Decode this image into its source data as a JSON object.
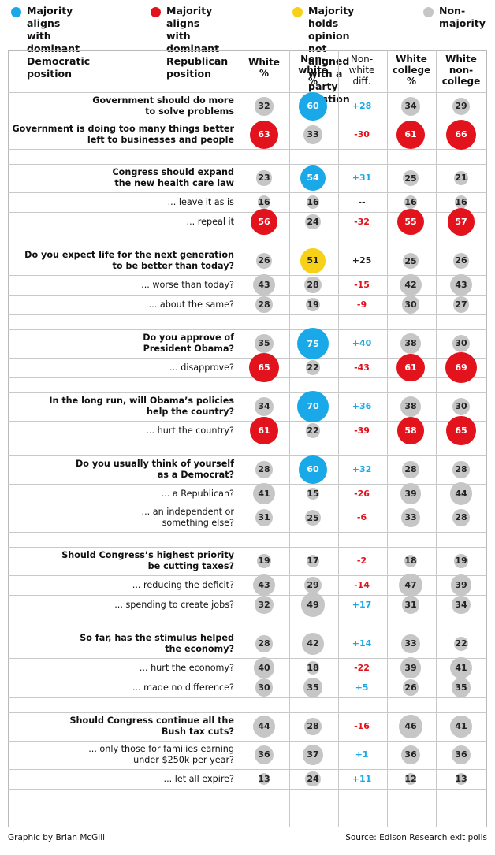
{
  "legend": [
    {
      "text": "Majority aligns\nwith dominant\nDemocratic position",
      "color": "#19a9e8"
    },
    {
      "text": "Majority aligns\nwith dominant\nRepublican position",
      "color": "#e2131c"
    },
    {
      "text": "Majority holds\nopinion not aligned\nwith a party postion",
      "color": "#f7d117"
    },
    {
      "text": "Non-\nmajority",
      "color": "#c6c6c6"
    }
  ],
  "columns": [
    {
      "label": "White\n%",
      "bold": true
    },
    {
      "label": "Non-\nwhite\n%",
      "bold": true
    },
    {
      "label": "Non-\nwhite\ndiff.",
      "bold": false
    },
    {
      "label": "White\ncollege\n%",
      "bold": true
    },
    {
      "label": "White\nnon-\ncollege",
      "bold": true
    }
  ],
  "colors": {
    "dem": "#19a9e8",
    "rep": "#e2131c",
    "other": "#f7d117",
    "none": "#c6c6c6",
    "diff_pos": "#19a9e8",
    "diff_neg": "#e2131c",
    "diff_neutral": "#222222"
  },
  "groups": [
    {
      "rows": [
        {
          "q": "Government should do more\nto solve problems",
          "bold": true,
          "white": 32,
          "nonwhite": 60,
          "diff": "+28",
          "college": 34,
          "noncollege": 29,
          "classes": [
            "none",
            "dem",
            "none",
            "none"
          ]
        },
        {
          "q": "Government is doing too many things better\nleft to businesses and people",
          "bold": true,
          "white": 63,
          "nonwhite": 33,
          "diff": "-30",
          "college": 61,
          "noncollege": 66,
          "classes": [
            "rep",
            "none",
            "rep",
            "rep"
          ]
        }
      ]
    },
    {
      "rows": [
        {
          "q": "Congress should expand\nthe new health care law",
          "bold": true,
          "white": 23,
          "nonwhite": 54,
          "diff": "+31",
          "college": 25,
          "noncollege": 21,
          "classes": [
            "none",
            "dem",
            "none",
            "none"
          ]
        },
        {
          "q": "... leave it as is",
          "bold": false,
          "white": 16,
          "nonwhite": 16,
          "diff": "--",
          "college": 16,
          "noncollege": 16,
          "classes": [
            "none",
            "none",
            "none",
            "none"
          ]
        },
        {
          "q": "... repeal it",
          "bold": false,
          "white": 56,
          "nonwhite": 24,
          "diff": "-32",
          "college": 55,
          "noncollege": 57,
          "classes": [
            "rep",
            "none",
            "rep",
            "rep"
          ]
        }
      ]
    },
    {
      "rows": [
        {
          "q": "Do you expect life for the next generation\nto be better than today?",
          "bold": true,
          "white": 26,
          "nonwhite": 51,
          "diff": "+25",
          "college": 25,
          "noncollege": 26,
          "classes": [
            "none",
            "other",
            "none",
            "none"
          ]
        },
        {
          "q": "... worse than today?",
          "bold": false,
          "white": 43,
          "nonwhite": 28,
          "diff": "-15",
          "college": 42,
          "noncollege": 43,
          "classes": [
            "none",
            "none",
            "none",
            "none"
          ]
        },
        {
          "q": "... about the same?",
          "bold": false,
          "white": 28,
          "nonwhite": 19,
          "diff": "-9",
          "college": 30,
          "noncollege": 27,
          "classes": [
            "none",
            "none",
            "none",
            "none"
          ]
        }
      ]
    },
    {
      "rows": [
        {
          "q": "Do you approve of\nPresident Obama?",
          "bold": true,
          "white": 35,
          "nonwhite": 75,
          "diff": "+40",
          "college": 38,
          "noncollege": 30,
          "classes": [
            "none",
            "dem",
            "none",
            "none"
          ]
        },
        {
          "q": "... disapprove?",
          "bold": false,
          "white": 65,
          "nonwhite": 22,
          "diff": "-43",
          "college": 61,
          "noncollege": 69,
          "classes": [
            "rep",
            "none",
            "rep",
            "rep"
          ]
        }
      ]
    },
    {
      "rows": [
        {
          "q": "In the long run, will Obama’s policies\nhelp the country?",
          "bold": true,
          "white": 34,
          "nonwhite": 70,
          "diff": "+36",
          "college": 38,
          "noncollege": 30,
          "classes": [
            "none",
            "dem",
            "none",
            "none"
          ]
        },
        {
          "q": "... hurt the country?",
          "bold": false,
          "white": 61,
          "nonwhite": 22,
          "diff": "-39",
          "college": 58,
          "noncollege": 65,
          "classes": [
            "rep",
            "none",
            "rep",
            "rep"
          ]
        }
      ]
    },
    {
      "rows": [
        {
          "q": "Do you usually think of yourself\nas a Democrat?",
          "bold": true,
          "white": 28,
          "nonwhite": 60,
          "diff": "+32",
          "college": 28,
          "noncollege": 28,
          "classes": [
            "none",
            "dem",
            "none",
            "none"
          ]
        },
        {
          "q": "... a Republican?",
          "bold": false,
          "white": 41,
          "nonwhite": 15,
          "diff": "-26",
          "college": 39,
          "noncollege": 44,
          "classes": [
            "none",
            "none",
            "none",
            "none"
          ]
        },
        {
          "q": "... an independent or\nsomething else?",
          "bold": false,
          "white": 31,
          "nonwhite": 25,
          "diff": "-6",
          "college": 33,
          "noncollege": 28,
          "classes": [
            "none",
            "none",
            "none",
            "none"
          ]
        }
      ]
    },
    {
      "rows": [
        {
          "q": "Should Congress’s highest priority\nbe cutting taxes?",
          "bold": true,
          "white": 19,
          "nonwhite": 17,
          "diff": "-2",
          "college": 18,
          "noncollege": 19,
          "classes": [
            "none",
            "none",
            "none",
            "none"
          ]
        },
        {
          "q": "... reducing the deficit?",
          "bold": false,
          "white": 43,
          "nonwhite": 29,
          "diff": "-14",
          "college": 47,
          "noncollege": 39,
          "classes": [
            "none",
            "none",
            "none",
            "none"
          ]
        },
        {
          "q": "... spending to create jobs?",
          "bold": false,
          "white": 32,
          "nonwhite": 49,
          "diff": "+17",
          "college": 31,
          "noncollege": 34,
          "classes": [
            "none",
            "none",
            "none",
            "none"
          ]
        }
      ]
    },
    {
      "rows": [
        {
          "q": "So far, has the stimulus helped\nthe economy?",
          "bold": true,
          "white": 28,
          "nonwhite": 42,
          "diff": "+14",
          "college": 33,
          "noncollege": 22,
          "classes": [
            "none",
            "none",
            "none",
            "none"
          ]
        },
        {
          "q": "... hurt the economy?",
          "bold": false,
          "white": 40,
          "nonwhite": 18,
          "diff": "-22",
          "college": 39,
          "noncollege": 41,
          "classes": [
            "none",
            "none",
            "none",
            "none"
          ]
        },
        {
          "q": "... made no difference?",
          "bold": false,
          "white": 30,
          "nonwhite": 35,
          "diff": "+5",
          "college": 26,
          "noncollege": 35,
          "classes": [
            "none",
            "none",
            "none",
            "none"
          ]
        }
      ]
    },
    {
      "rows": [
        {
          "q": "Should Congress continue all the\nBush tax cuts?",
          "bold": true,
          "white": 44,
          "nonwhite": 28,
          "diff": "-16",
          "college": 46,
          "noncollege": 41,
          "classes": [
            "none",
            "none",
            "none",
            "none"
          ]
        },
        {
          "q": "... only those for families earning\nunder $250k per year?",
          "bold": false,
          "white": 36,
          "nonwhite": 37,
          "diff": "+1",
          "college": 36,
          "noncollege": 36,
          "classes": [
            "none",
            "none",
            "none",
            "none"
          ]
        },
        {
          "q": "... let all expire?",
          "bold": false,
          "white": 13,
          "nonwhite": 24,
          "diff": "+11",
          "college": 12,
          "noncollege": 13,
          "classes": [
            "none",
            "none",
            "none",
            "none"
          ]
        }
      ]
    }
  ],
  "footer": {
    "credit": "Graphic by Brian McGill",
    "source": "Source: Edison Research exit polls"
  }
}
